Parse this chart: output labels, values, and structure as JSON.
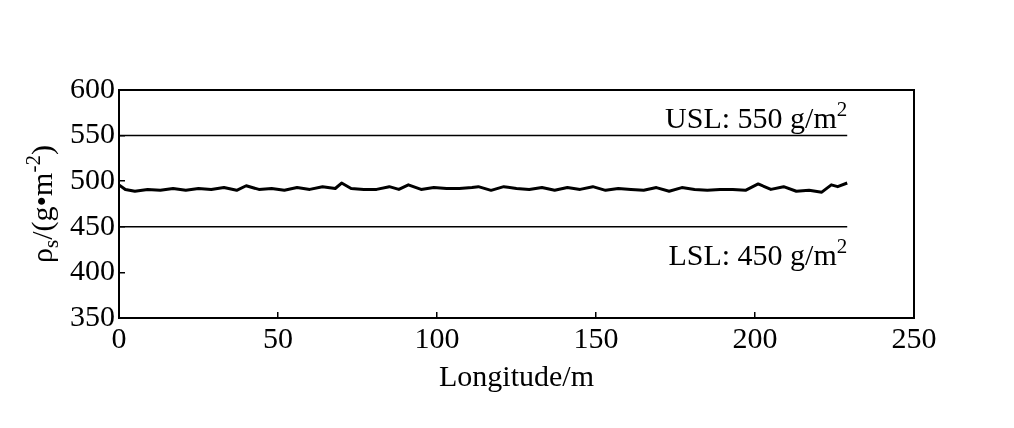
{
  "chart_data": {
    "type": "line",
    "xlabel": "Longitude/m",
    "ylabel": "ρ$_{s}$/(g•m$^{-2}$)",
    "x": [
      0,
      2,
      5,
      9,
      13,
      17,
      21,
      25,
      29,
      33,
      37,
      40,
      44,
      48,
      52,
      56,
      60,
      64,
      68,
      70,
      73,
      77,
      81,
      85,
      88,
      91,
      95,
      99,
      103,
      107,
      111,
      113,
      117,
      121,
      125,
      129,
      133,
      137,
      141,
      145,
      149,
      153,
      157,
      161,
      165,
      169,
      173,
      177,
      181,
      185,
      189,
      193,
      197,
      201,
      205,
      209,
      213,
      217,
      221,
      224,
      226,
      229
    ],
    "series": [
      {
        "color": "#000000",
        "values": [
          496,
          491,
          489,
          491,
          490,
          492,
          490,
          492,
          491,
          493,
          490,
          495,
          491,
          492,
          490,
          493,
          491,
          494,
          492,
          498,
          492,
          491,
          491,
          494,
          491,
          496,
          491,
          493,
          492,
          492,
          493,
          494,
          490,
          494,
          492,
          491,
          493,
          490,
          493,
          491,
          494,
          490,
          492,
          491,
          490,
          493,
          489,
          493,
          491,
          490,
          491,
          491,
          490,
          497,
          491,
          494,
          489,
          490,
          488,
          496,
          494,
          498
        ]
      }
    ],
    "xlim": [
      0,
      250
    ],
    "xticks": [
      0,
      50,
      100,
      150,
      200,
      250
    ],
    "ylim": [
      350,
      600
    ],
    "yticks": [
      350,
      400,
      450,
      500,
      550,
      600
    ],
    "grid": false,
    "legend": false,
    "marker": "none",
    "line_style": "solid",
    "ref_lines": [
      {
        "axis": "y",
        "value": 550,
        "label": "USL: 550 g/m$^{2}$",
        "color": "#000000"
      },
      {
        "axis": "y",
        "value": 450,
        "label": "LSL: 450 g/m$^{2}$",
        "color": "#000000"
      }
    ]
  }
}
